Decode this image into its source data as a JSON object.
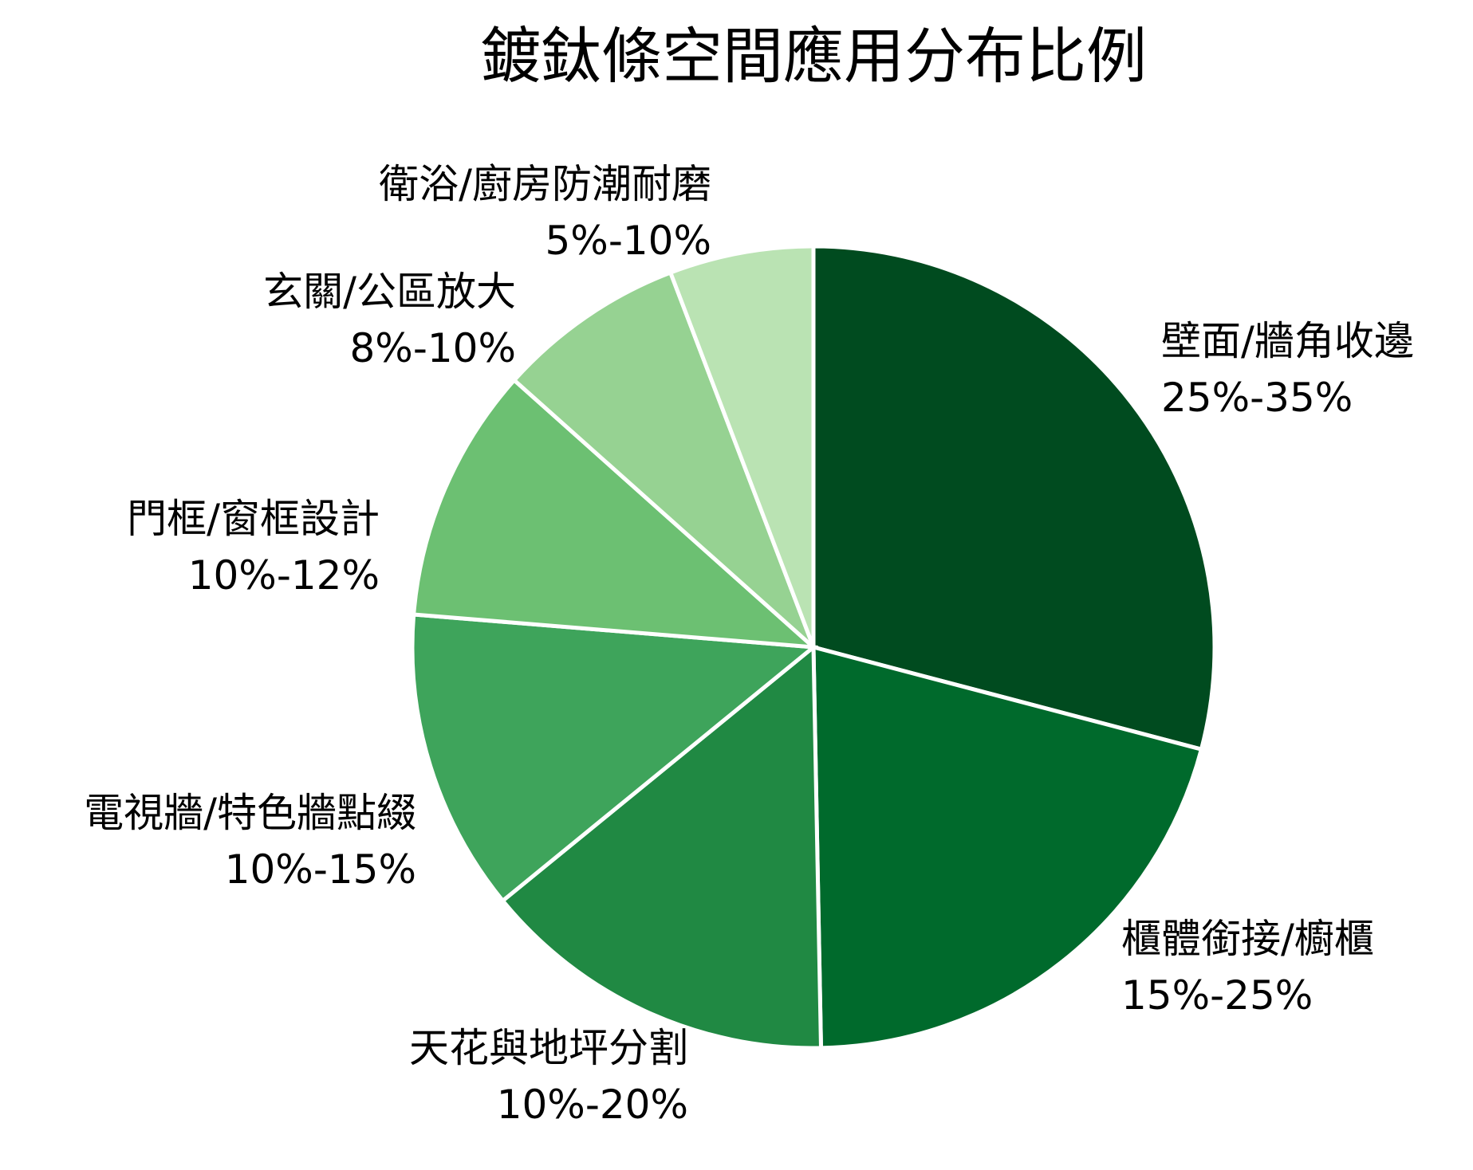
{
  "chart_data": {
    "type": "pie",
    "title": "鍍鈦條空間應用分布比例",
    "start_angle_deg": 90,
    "direction": "clockwise",
    "slices": [
      {
        "name": "壁面/牆角收邊",
        "range_label": "25%-35%",
        "value": 29.1,
        "color": "#004b1f"
      },
      {
        "name": "櫃體銜接/櫥櫃",
        "range_label": "15%-25%",
        "value": 20.6,
        "color": "#006a2c"
      },
      {
        "name": "天花與地坪分割",
        "range_label": "10%-20%",
        "value": 14.4,
        "color": "#208943"
      },
      {
        "name": "電視牆/特色牆點綴",
        "range_label": "10%-15%",
        "value": 12.2,
        "color": "#3ea45b"
      },
      {
        "name": "門框/窗框設計",
        "range_label": "10%-12%",
        "value": 10.3,
        "color": "#6cc072"
      },
      {
        "name": "玄關/公區放大",
        "range_label": "8%-10%",
        "value": 7.6,
        "color": "#96d292"
      },
      {
        "name": "衛浴/廚房防潮耐磨",
        "range_label": "5%-10%",
        "value": 5.8,
        "color": "#bae3b3"
      }
    ]
  }
}
